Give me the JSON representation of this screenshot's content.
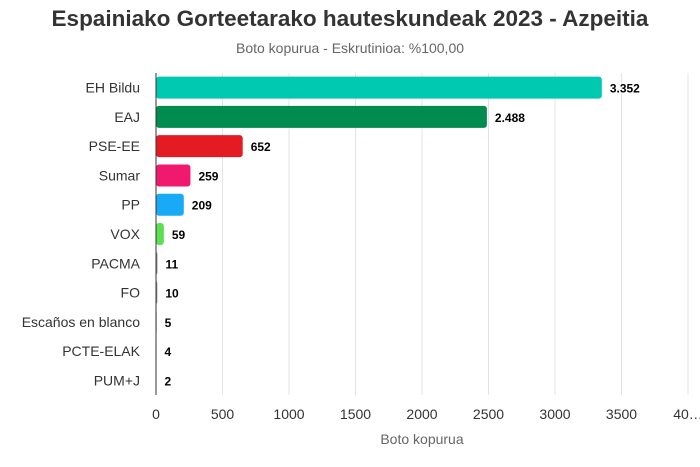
{
  "chart_data": {
    "type": "bar",
    "orientation": "horizontal",
    "title": "Espainiako Gorteetarako hauteskundeak 2023 - Azpeitia",
    "subtitle": "Boto kopurua - Eskrutinioa: %100,00",
    "xlabel": "Boto kopurua",
    "ylabel": "",
    "xlim": [
      0,
      4000
    ],
    "ticks": [
      "0",
      "500",
      "1000",
      "1500",
      "2000",
      "2500",
      "3000",
      "3500",
      "40…"
    ],
    "grid": true,
    "categories": [
      "EH Bildu",
      "EAJ",
      "PSE-EE",
      "Sumar",
      "PP",
      "VOX",
      "PACMA",
      "FO",
      "Escaños en blanco",
      "PCTE-ELAK",
      "PUM+J"
    ],
    "values": [
      3352,
      2488,
      652,
      259,
      209,
      59,
      11,
      10,
      5,
      4,
      2
    ],
    "value_labels": [
      "3.352",
      "2.488",
      "652",
      "259",
      "209",
      "59",
      "11",
      "10",
      "5",
      "4",
      "2"
    ],
    "colors": [
      "#00c9b1",
      "#008c4e",
      "#e51b24",
      "#f0196e",
      "#19aaf5",
      "#5ce051",
      "#8c8c8c",
      "#8c8c8c",
      "#8c8c8c",
      "#8c8c8c",
      "#8c8c8c"
    ]
  }
}
